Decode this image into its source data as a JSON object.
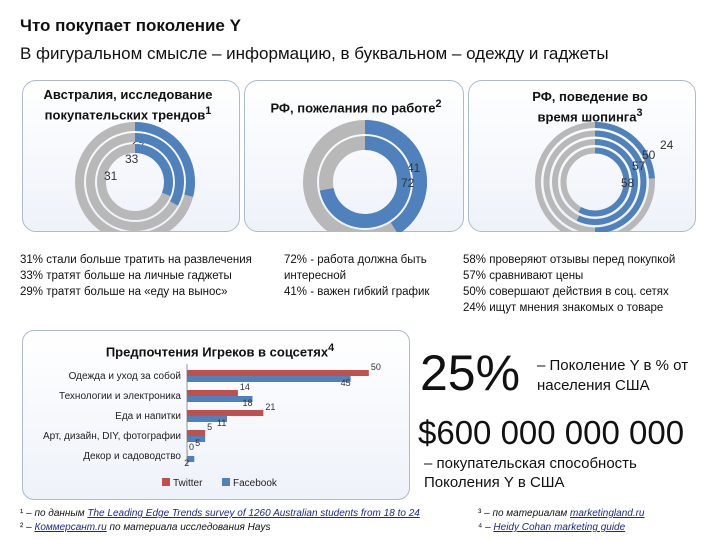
{
  "page": {
    "title": "Что покупает поколение Y",
    "subtitle": "В фигуральном смысле – информацию, в буквальном – одежду и гаджеты"
  },
  "colors": {
    "blue": "#4f81bd",
    "gray": "#b8b8b8",
    "red": "#c0504d",
    "text": "#222222"
  },
  "chart_data": [
    {
      "type": "donut",
      "title": "Австралия, исследование покупательских трендов",
      "title_note": "1",
      "series": [
        {
          "value": 29
        },
        {
          "value": 33
        },
        {
          "value": 31
        }
      ],
      "descriptions": [
        "31% стали больше тратить на развлечения",
        "33% тратят больше на личные гаджеты",
        "29% тратят больше на «еду на вынос»"
      ]
    },
    {
      "type": "donut",
      "title": "РФ, пожелания по работе",
      "title_note": "2",
      "series": [
        {
          "value": 41
        },
        {
          "value": 72
        }
      ],
      "descriptions": [
        "72% - работа должна быть",
        "интересной",
        "41% - важен гибкий график"
      ]
    },
    {
      "type": "donut",
      "title": "РФ, поведение во время шопинга",
      "title_note": "3",
      "series": [
        {
          "value": 24
        },
        {
          "value": 50
        },
        {
          "value": 57
        },
        {
          "value": 58
        }
      ],
      "descriptions": [
        "58% проверяют отзывы перед покупкой",
        "57% сравнивают цены",
        "50% совершают действия в соц. сетях",
        "24% ищут мнения знакомых о товаре"
      ]
    },
    {
      "type": "bar",
      "orientation": "horizontal",
      "title": "Предпочтения Игреков в соцсетях",
      "title_note": "4",
      "categories": [
        "Одежда и уход за собой",
        "Технологии и электроника",
        "Еда и напитки",
        "Арт, дизайн, DIY, фотографии",
        "Декор и садоводство"
      ],
      "series": [
        {
          "name": "Twitter",
          "values": [
            50,
            14,
            21,
            5,
            0
          ]
        },
        {
          "name": "Facebook",
          "values": [
            45,
            18,
            11,
            5,
            2
          ]
        }
      ],
      "xlim": [
        0,
        55
      ]
    }
  ],
  "stats": {
    "percent": "25%",
    "percent_label": "– Поколение Y в % от населения США",
    "amount": "$600 000 000 000",
    "amount_label": "– покупательская способность Поколения Y в США"
  },
  "footnotes": {
    "n1": "¹ –",
    "f1_prefix": "по данным",
    "f1_link": "The Leading Edge Trends survey of 1260 Australian students from 18 to 24",
    "n2": "² –",
    "f2_link": "Коммерсант.ru",
    "f2_suffix": "по материала исследования Hays",
    "n3": "³ –",
    "f3_prefix": "по материалам",
    "f3_link": "marketingland.ru",
    "n4": "⁴ –",
    "f4_link": "Heidy Cohan marketing guide"
  }
}
